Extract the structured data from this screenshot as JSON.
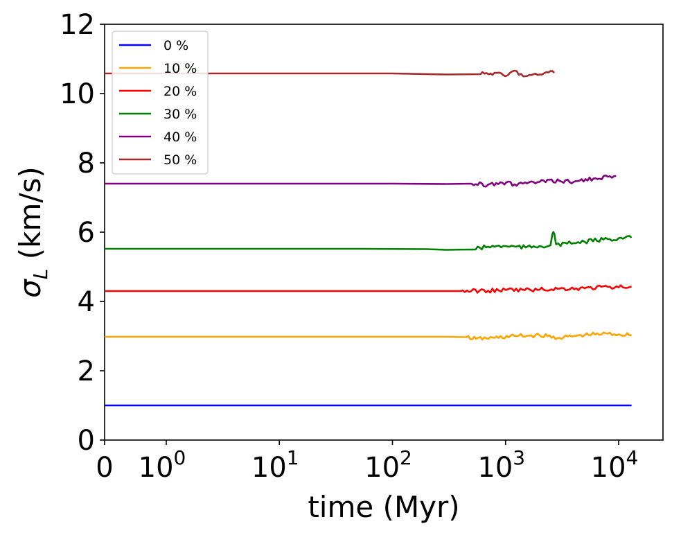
{
  "chart_data": {
    "type": "line",
    "xlabel": "time (Myr)",
    "ylabel": "σ_L (km/s)",
    "ylabel_symbol": "σ",
    "ylabel_subscript": "L",
    "ylabel_unit": " (km/s)",
    "x_scale": "symlog",
    "y_ticks": [
      "0",
      "2",
      "4",
      "6",
      "8",
      "10",
      "12"
    ],
    "x_ticks": [
      {
        "base": "0",
        "exp": ""
      },
      {
        "base": "10",
        "exp": "0"
      },
      {
        "base": "10",
        "exp": "1"
      },
      {
        "base": "10",
        "exp": "2"
      },
      {
        "base": "10",
        "exp": "3"
      },
      {
        "base": "10",
        "exp": "4"
      }
    ],
    "ylim": [
      0,
      12
    ],
    "legend_position": "top-left",
    "grid": false,
    "series": [
      {
        "name": "0 %",
        "color": "#0000ff",
        "start": 1.0,
        "end_time": 13000,
        "points": [
          [
            0,
            1.0
          ],
          [
            13000,
            1.0
          ]
        ]
      },
      {
        "name": "10 %",
        "color": "#ffa500",
        "start": 2.98,
        "end_time": 13000,
        "points": [
          [
            0,
            2.98
          ],
          [
            100,
            2.98
          ],
          [
            300,
            2.98
          ],
          [
            450,
            2.97
          ],
          [
            550,
            2.92
          ],
          [
            800,
            2.95
          ],
          [
            1200,
            3.0
          ],
          [
            2000,
            3.02
          ],
          [
            3000,
            2.95
          ],
          [
            5000,
            3.03
          ],
          [
            8000,
            3.07
          ],
          [
            13000,
            3.03
          ]
        ]
      },
      {
        "name": "20 %",
        "color": "#ff0000",
        "start": 4.3,
        "end_time": 13000,
        "points": [
          [
            0,
            4.3
          ],
          [
            100,
            4.3
          ],
          [
            400,
            4.3
          ],
          [
            700,
            4.31
          ],
          [
            1000,
            4.33
          ],
          [
            2000,
            4.34
          ],
          [
            3000,
            4.37
          ],
          [
            5000,
            4.38
          ],
          [
            8000,
            4.42
          ],
          [
            13000,
            4.43
          ]
        ]
      },
      {
        "name": "30 %",
        "color": "#008000",
        "start": 5.52,
        "end_time": 13000,
        "points": [
          [
            0,
            5.52
          ],
          [
            50,
            5.52
          ],
          [
            200,
            5.51
          ],
          [
            300,
            5.49
          ],
          [
            500,
            5.5
          ],
          [
            700,
            5.58
          ],
          [
            1000,
            5.6
          ],
          [
            1500,
            5.56
          ],
          [
            2000,
            5.6
          ],
          [
            2500,
            5.62
          ],
          [
            2600,
            5.95
          ],
          [
            2700,
            5.95
          ],
          [
            2800,
            5.65
          ],
          [
            3500,
            5.67
          ],
          [
            5000,
            5.72
          ],
          [
            8000,
            5.8
          ],
          [
            13000,
            5.84
          ]
        ]
      },
      {
        "name": "40 %",
        "color": "#800080",
        "start": 7.4,
        "end_time": 9500,
        "points": [
          [
            0,
            7.4
          ],
          [
            100,
            7.4
          ],
          [
            300,
            7.39
          ],
          [
            500,
            7.4
          ],
          [
            700,
            7.37
          ],
          [
            900,
            7.44
          ],
          [
            1200,
            7.38
          ],
          [
            2000,
            7.45
          ],
          [
            3000,
            7.48
          ],
          [
            4000,
            7.45
          ],
          [
            6000,
            7.55
          ],
          [
            8000,
            7.6
          ],
          [
            9500,
            7.62
          ]
        ]
      },
      {
        "name": "50 %",
        "color": "#a52a2a",
        "start": 10.58,
        "end_time": 2700,
        "points": [
          [
            0,
            10.58
          ],
          [
            100,
            10.58
          ],
          [
            300,
            10.55
          ],
          [
            600,
            10.56
          ],
          [
            800,
            10.6
          ],
          [
            1000,
            10.5
          ],
          [
            1200,
            10.66
          ],
          [
            1500,
            10.5
          ],
          [
            2000,
            10.55
          ],
          [
            2300,
            10.62
          ],
          [
            2500,
            10.65
          ],
          [
            2700,
            10.6
          ]
        ]
      }
    ]
  }
}
